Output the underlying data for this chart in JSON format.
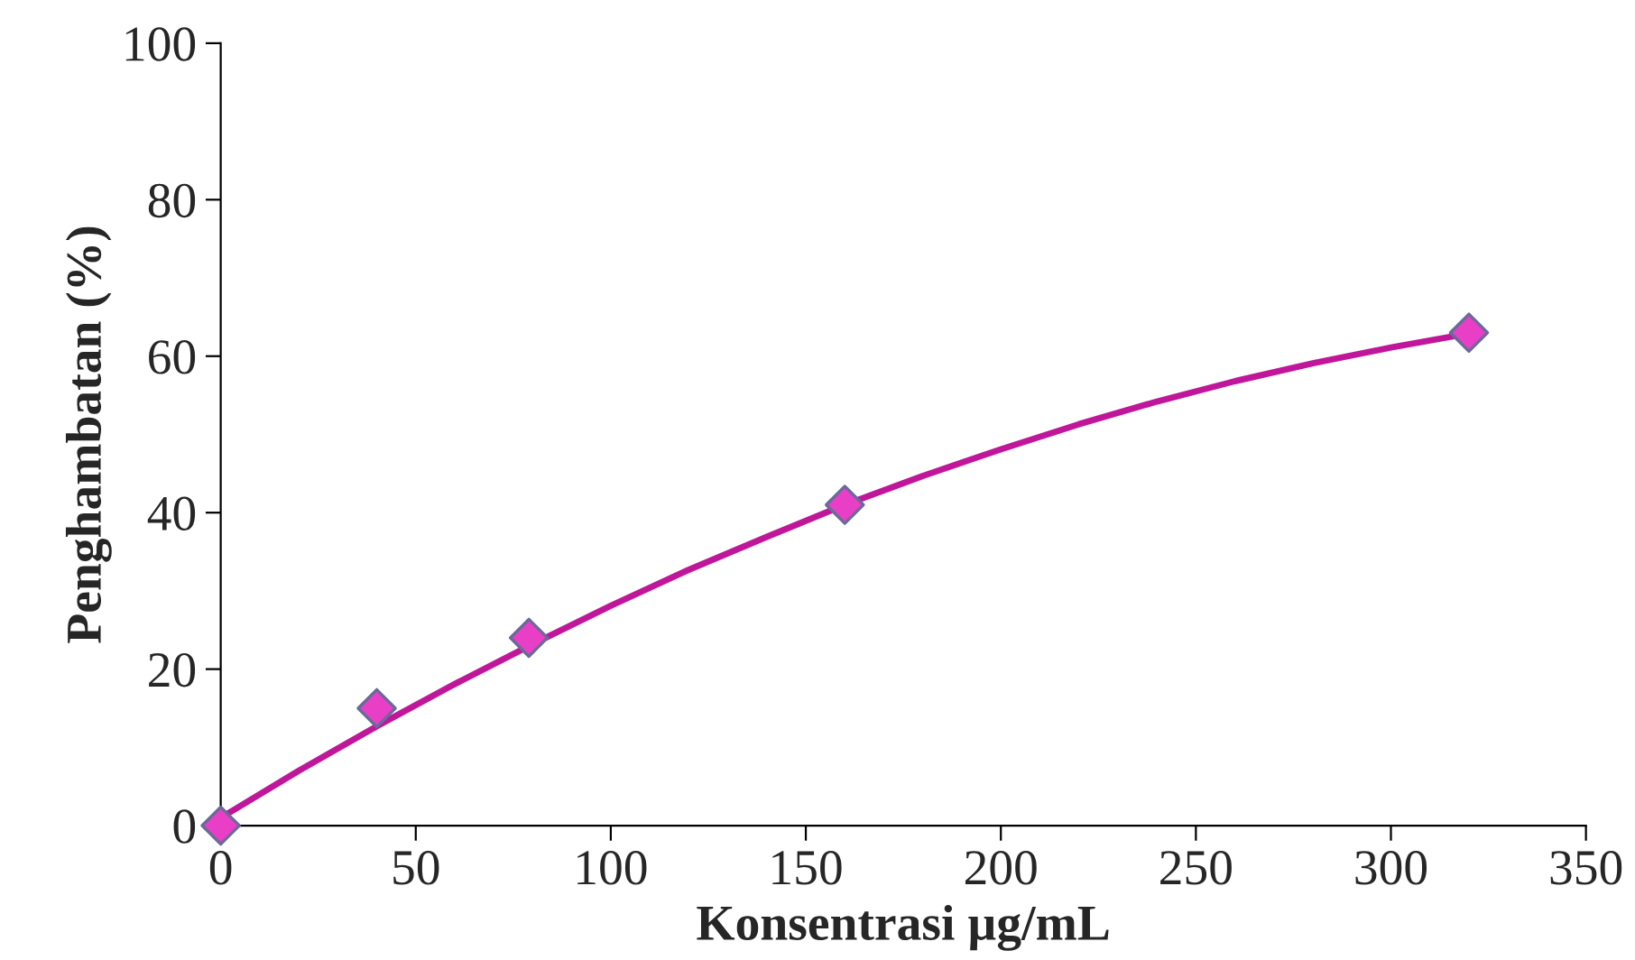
{
  "chart_data": {
    "type": "scatter",
    "xlabel": "Konsentrasi µg/mL",
    "ylabel": "Penghambatan (%)",
    "xlim": [
      0,
      350
    ],
    "xticks": [
      0,
      50,
      100,
      150,
      200,
      250,
      300,
      350
    ],
    "ylim": [
      0,
      100
    ],
    "yticks": [
      0,
      20,
      40,
      60,
      80,
      100
    ],
    "grid": false,
    "series": [
      {
        "type": "line",
        "color": "#c0169a",
        "marker": "none",
        "line_style": "solid",
        "x": [
          0,
          20,
          40,
          60,
          80,
          100,
          120,
          140,
          160,
          180,
          200,
          220,
          240,
          260,
          280,
          300,
          320
        ],
        "values": [
          1.0,
          7.0,
          12.7,
          18.1,
          23.2,
          28.1,
          32.7,
          36.9,
          41.0,
          44.7,
          48.1,
          51.3,
          54.2,
          56.8,
          59.1,
          61.1,
          62.9
        ]
      },
      {
        "color": "#e83fc6",
        "marker": "diamond",
        "x": [
          0,
          40,
          79,
          160,
          320
        ],
        "values": [
          0,
          15,
          24,
          41,
          63
        ]
      }
    ]
  }
}
